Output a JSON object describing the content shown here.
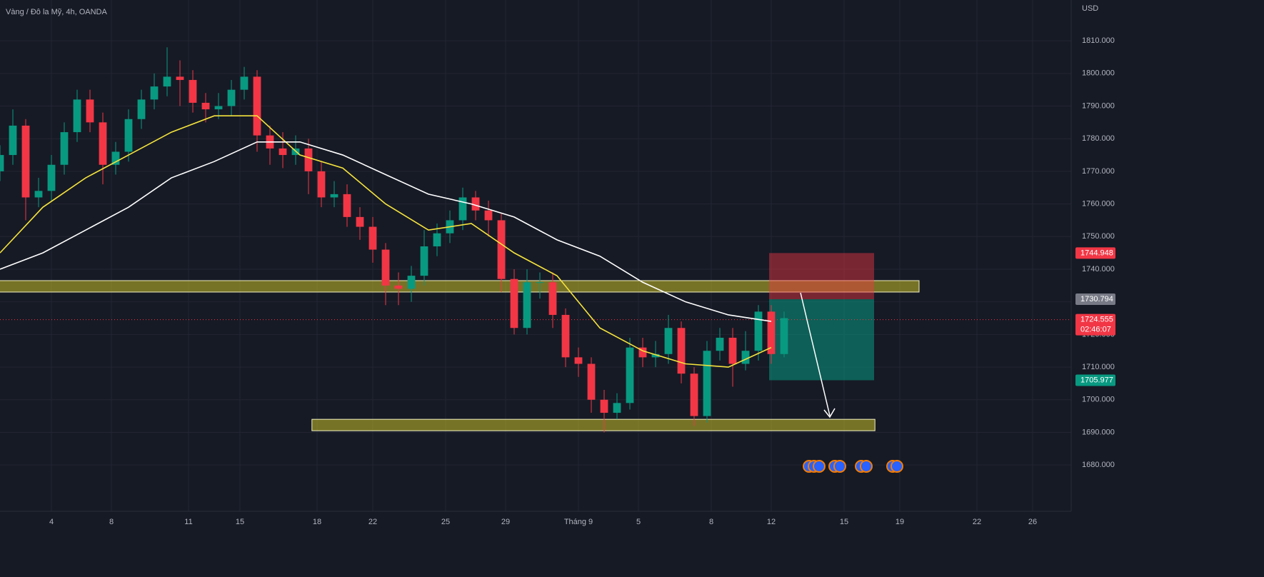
{
  "chart_data": {
    "type": "candlestick",
    "title": "Vàng / Đô la Mỹ, 4h, OANDA",
    "currency": "USD",
    "up_color": "#089981",
    "down_color": "#f23645",
    "xlim": [
      0,
      250
    ],
    "ylim": [
      1671.5,
      1822.5
    ],
    "grid": true,
    "xticks": [
      {
        "value": 12,
        "label": "4"
      },
      {
        "value": 26,
        "label": "8"
      },
      {
        "value": 44,
        "label": "11"
      },
      {
        "value": 56,
        "label": "15"
      },
      {
        "value": 74,
        "label": "18"
      },
      {
        "value": 87,
        "label": "22"
      },
      {
        "value": 104,
        "label": "25"
      },
      {
        "value": 118,
        "label": "29"
      },
      {
        "value": 135,
        "label": "Tháng 9"
      },
      {
        "value": 149,
        "label": "5"
      },
      {
        "value": 166,
        "label": "8"
      },
      {
        "value": 180,
        "label": "12"
      },
      {
        "value": 197,
        "label": "15"
      },
      {
        "value": 210,
        "label": "19"
      },
      {
        "value": 228,
        "label": "22"
      },
      {
        "value": 241,
        "label": "26"
      }
    ],
    "yticks": [
      {
        "value": 1680,
        "label": "1680.000"
      },
      {
        "value": 1690,
        "label": "1690.000"
      },
      {
        "value": 1700,
        "label": "1700.000"
      },
      {
        "value": 1710,
        "label": "1710.000"
      },
      {
        "value": 1720,
        "label": "1720.000"
      },
      {
        "value": 1730,
        "label": "1730.000"
      },
      {
        "value": 1740,
        "label": "1740.000"
      },
      {
        "value": 1750,
        "label": "1750.000"
      },
      {
        "value": 1760,
        "label": "1760.000"
      },
      {
        "value": 1770,
        "label": "1770.000"
      },
      {
        "value": 1780,
        "label": "1780.000"
      },
      {
        "value": 1790,
        "label": "1790.000"
      },
      {
        "value": 1800,
        "label": "1800.000"
      },
      {
        "value": 1810,
        "label": "1810.000"
      }
    ],
    "x": [
      0,
      3,
      6,
      9,
      12,
      15,
      18,
      21,
      24,
      27,
      30,
      33,
      36,
      39,
      42,
      45,
      48,
      51,
      54,
      57,
      60,
      63,
      66,
      69,
      72,
      75,
      78,
      81,
      84,
      87,
      90,
      93,
      96,
      99,
      102,
      105,
      108,
      111,
      114,
      117,
      120,
      123,
      126,
      129,
      132,
      135,
      138,
      141,
      144,
      147,
      150,
      153,
      156,
      159,
      162,
      165,
      168,
      171,
      174,
      177,
      180,
      183
    ],
    "open": [
      1770,
      1775,
      1784,
      1762,
      1764,
      1772,
      1782,
      1792,
      1785,
      1772,
      1776,
      1786,
      1792,
      1796,
      1799,
      1798,
      1791,
      1789,
      1790,
      1795,
      1799,
      1781,
      1777,
      1775,
      1777,
      1770,
      1762,
      1763,
      1756,
      1753,
      1746,
      1735,
      1734,
      1738,
      1747,
      1751,
      1755,
      1762,
      1758,
      1755,
      1737,
      1722,
      1736,
      1736,
      1726,
      1713,
      1711,
      1700,
      1696,
      1699,
      1716,
      1713,
      1714,
      1722,
      1708,
      1695,
      1715,
      1719,
      1711,
      1715,
      1727,
      1714
    ],
    "high": [
      1778,
      1789,
      1786,
      1768,
      1775,
      1785,
      1795,
      1795,
      1788,
      1779,
      1789,
      1795,
      1800,
      1808,
      1804,
      1801,
      1794,
      1794,
      1798,
      1802,
      1801,
      1784,
      1782,
      1781,
      1780,
      1773,
      1767,
      1766,
      1759,
      1756,
      1748,
      1739,
      1741,
      1752,
      1754,
      1758,
      1765,
      1764,
      1761,
      1757,
      1740,
      1740,
      1739,
      1739,
      1728,
      1716,
      1713,
      1703,
      1702,
      1719,
      1719,
      1718,
      1726,
      1724,
      1710,
      1718,
      1722,
      1722,
      1721,
      1729,
      1729,
      1727
    ],
    "low": [
      1767,
      1772,
      1755,
      1759,
      1761,
      1769,
      1779,
      1782,
      1766,
      1769,
      1773,
      1783,
      1789,
      1793,
      1790,
      1788,
      1785,
      1786,
      1787,
      1792,
      1776,
      1772,
      1771,
      1772,
      1763,
      1759,
      1759,
      1753,
      1749,
      1742,
      1729,
      1729,
      1730,
      1735,
      1744,
      1748,
      1752,
      1755,
      1750,
      1733,
      1720,
      1720,
      1731,
      1722,
      1710,
      1707,
      1696,
      1690,
      1694,
      1697,
      1710,
      1710,
      1711,
      1705,
      1692,
      1693,
      1712,
      1704,
      1709,
      1712,
      1711,
      1713
    ],
    "close": [
      1775,
      1784,
      1762,
      1764,
      1772,
      1782,
      1792,
      1785,
      1772,
      1776,
      1786,
      1792,
      1796,
      1799,
      1798,
      1791,
      1789,
      1790,
      1795,
      1799,
      1781,
      1777,
      1775,
      1777,
      1770,
      1762,
      1763,
      1756,
      1753,
      1746,
      1735,
      1734,
      1738,
      1747,
      1751,
      1755,
      1762,
      1758,
      1755,
      1737,
      1722,
      1736,
      1736,
      1726,
      1713,
      1711,
      1700,
      1696,
      1699,
      1716,
      1713,
      1714,
      1722,
      1708,
      1695,
      1715,
      1719,
      1711,
      1715,
      1727,
      1714,
      1725
    ],
    "series": [
      {
        "color": "#f5e33c",
        "x": [
          0,
          10,
          20,
          30,
          40,
          50,
          60,
          70,
          80,
          90,
          100,
          110,
          120,
          130,
          140,
          150,
          160,
          170,
          180
        ],
        "values": [
          1745,
          1759,
          1768,
          1775,
          1782,
          1787,
          1787,
          1775,
          1771,
          1760,
          1752,
          1754,
          1745,
          1738,
          1722,
          1715,
          1711,
          1710,
          1716
        ]
      },
      {
        "color": "#ffffff",
        "x": [
          0,
          10,
          20,
          30,
          40,
          50,
          60,
          70,
          80,
          90,
          100,
          110,
          120,
          130,
          140,
          150,
          160,
          170,
          180
        ],
        "values": [
          1740,
          1745,
          1752,
          1759,
          1768,
          1773,
          1779,
          1779,
          1775,
          1769,
          1763,
          1760,
          1756,
          1749,
          1744,
          1736,
          1730,
          1726,
          1724
        ]
      }
    ],
    "zones": [
      {
        "low": 1733,
        "high": 1736.5,
        "x": [
          -1,
          214.5
        ]
      },
      {
        "low": 1690.5,
        "high": 1694,
        "x": [
          72.8,
          204.2
        ]
      }
    ],
    "position": {
      "x": [
        179.5,
        204
      ],
      "stop": 1744.948,
      "entry": 1730.794,
      "target": 1705.977
    },
    "last_price": 1724.555,
    "countdown": "02:46:07"
  }
}
